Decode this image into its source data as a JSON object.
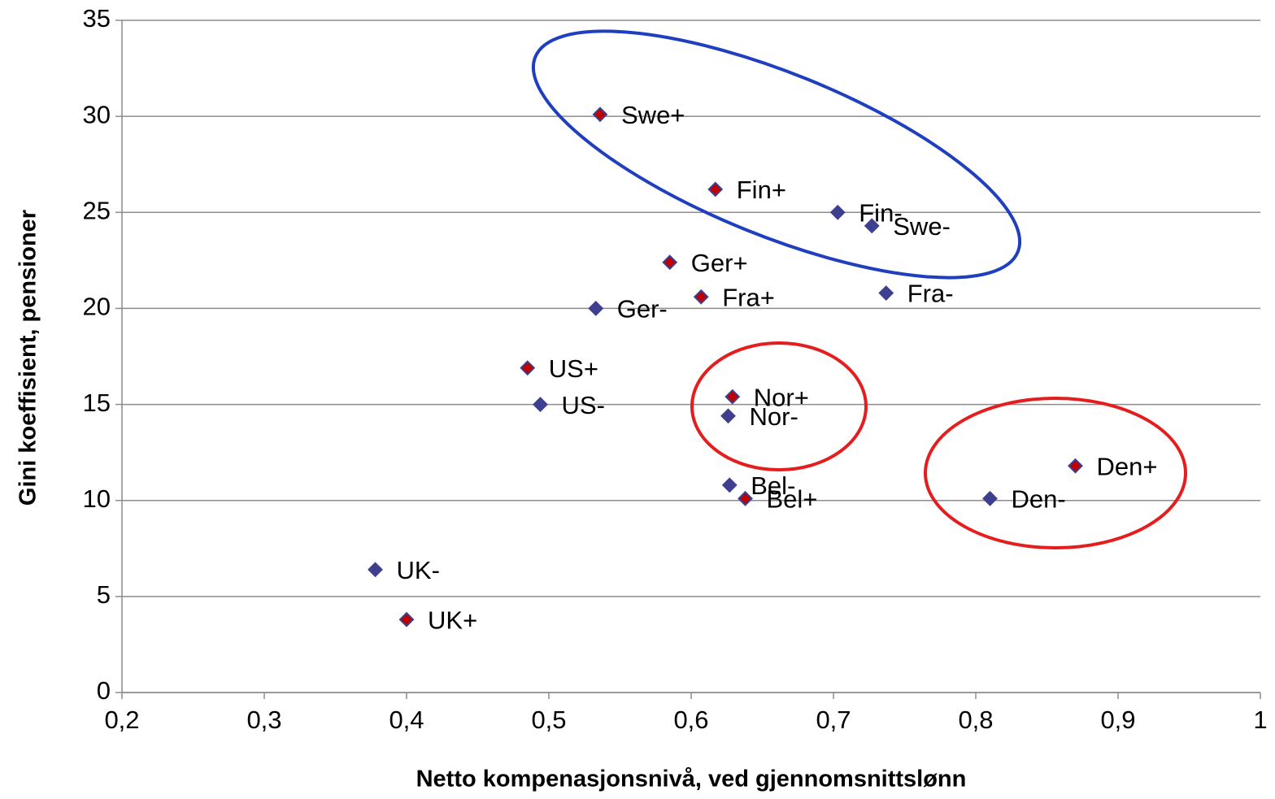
{
  "chart_data": {
    "type": "scatter",
    "xlabel": "Netto kompenasjonsnivå, ved gjennomsnittslønn",
    "ylabel": "Gini koeffisient, pensioner",
    "xlim": [
      0.2,
      1
    ],
    "ylim": [
      0,
      35
    ],
    "xticks": [
      {
        "value": 0.2,
        "label": "0,2"
      },
      {
        "value": 0.3,
        "label": "0,3"
      },
      {
        "value": 0.4,
        "label": "0,4"
      },
      {
        "value": 0.5,
        "label": "0,5"
      },
      {
        "value": 0.6,
        "label": "0,6"
      },
      {
        "value": 0.7,
        "label": "0,7"
      },
      {
        "value": 0.8,
        "label": "0,8"
      },
      {
        "value": 0.9,
        "label": "0,9"
      },
      1
    ],
    "yticks": [
      0,
      5,
      10,
      15,
      20,
      25,
      30,
      35
    ],
    "grid": true,
    "series": [
      {
        "color": "#c00000",
        "edge": "#3a3f8f",
        "labels": [
          "Swe+",
          "Fin+",
          "Ger+",
          "Fra+",
          "US+",
          "Nor+",
          "Bel+",
          "Den+",
          "UK+"
        ],
        "x": [
          0.536,
          0.617,
          0.585,
          0.607,
          0.485,
          0.629,
          0.638,
          0.87,
          0.4
        ],
        "values": [
          30.1,
          26.2,
          22.4,
          20.6,
          16.9,
          15.4,
          10.1,
          11.8,
          3.8
        ]
      },
      {
        "color": "#3f3f8f",
        "edge": "#3f3f8f",
        "labels": [
          "Fin-",
          "Swe-",
          "Fra-",
          "Ger-",
          "US-",
          "Nor-",
          "Bel-",
          "Den-",
          "UK-"
        ],
        "x": [
          0.703,
          0.727,
          0.737,
          0.533,
          0.494,
          0.626,
          0.627,
          0.81,
          0.378
        ],
        "values": [
          25.0,
          24.3,
          20.8,
          20.0,
          15.0,
          14.4,
          10.8,
          10.1,
          6.4
        ]
      }
    ]
  }
}
